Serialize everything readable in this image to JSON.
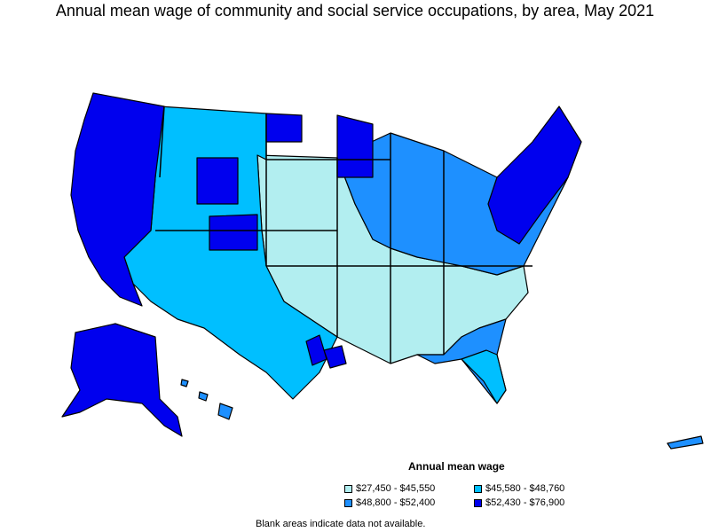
{
  "title": "Annual mean wage of community and social service occupations, by area, May 2021",
  "legend": {
    "title": "Annual mean wage",
    "items": [
      {
        "label": "$27,450 - $45,550",
        "color": "#b2eef0"
      },
      {
        "label": "$45,580 - $48,760",
        "color": "#00bfff"
      },
      {
        "label": "$48,800 - $52,400",
        "color": "#1e90ff"
      },
      {
        "label": "$52,430 - $76,900",
        "color": "#0000ee"
      }
    ]
  },
  "note": "Blank areas indicate data not available.",
  "colors": {
    "outline": "#000000",
    "background": "#ffffff"
  }
}
